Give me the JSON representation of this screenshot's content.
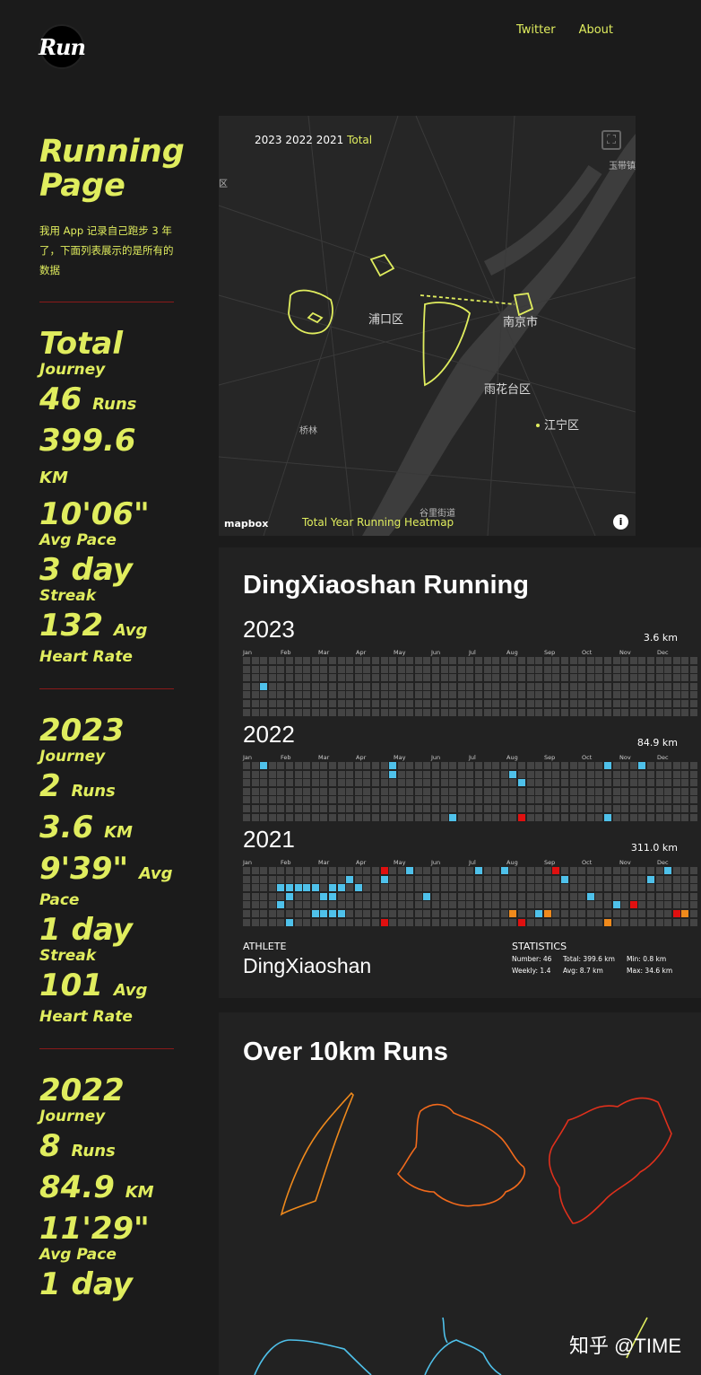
{
  "logo": {
    "text": "Run"
  },
  "nav": {
    "twitter": "Twitter",
    "about": "About"
  },
  "sidebar": {
    "title": "Running Page",
    "description": "我用 App 记录自己跑步 3 年了，下面列表展示的是所有的数据",
    "total": {
      "journey": "Total",
      "journey_sub": "Journey",
      "runs_num": "46",
      "runs_unit": "Runs",
      "km_num": "399.6",
      "km_unit": "KM",
      "pace": "10'06\"",
      "pace_label": "Avg Pace",
      "streak": "3 day",
      "streak_label": "Streak",
      "hr": "132",
      "hr_unit": "Avg",
      "hr_label": "Heart Rate"
    },
    "y2023": {
      "journey": "2023",
      "journey_sub": "Journey",
      "runs_num": "2",
      "runs_unit": "Runs",
      "km_num": "3.6",
      "km_unit": "KM",
      "pace": "9'39\"",
      "pace_unit": "Avg",
      "pace_label": "Pace",
      "streak": "1 day",
      "streak_label": "Streak",
      "hr": "101",
      "hr_unit": "Avg",
      "hr_label": "Heart Rate"
    },
    "y2022": {
      "journey": "2022",
      "journey_sub": "Journey",
      "runs_num": "8",
      "runs_unit": "Runs",
      "km_num": "84.9",
      "km_unit": "KM",
      "pace": "11'29\"",
      "pace_label": "Avg Pace",
      "streak": "1 day"
    }
  },
  "map": {
    "years": "2023 2022 2021",
    "total": "Total",
    "labels": {
      "pukou": "浦口区",
      "nanjing": "南京市",
      "yuhuatai": "雨花台区",
      "jiangning": "江宁区",
      "qiaolin": "桥林",
      "guli": "谷里街道",
      "yudai": "玉带镇",
      "qu": "区"
    },
    "caption": "Total Year Running Heatmap",
    "mapbox": "mapbox"
  },
  "calendar": {
    "title": "DingXiaoshan Running",
    "months": [
      "Jan",
      "Feb",
      "Mar",
      "Apr",
      "May",
      "Jun",
      "Jul",
      "Aug",
      "Sep",
      "Oct",
      "Nov",
      "Dec"
    ],
    "years": [
      {
        "year": "2023",
        "km": "3.6 km"
      },
      {
        "year": "2022",
        "km": "84.9 km"
      },
      {
        "year": "2021",
        "km": "311.0 km"
      }
    ],
    "athlete_label": "ATHLETE",
    "athlete_name": "DingXiaoshan",
    "statistics_label": "STATISTICS",
    "stats": {
      "number": "Number: 46",
      "weekly": "Weekly: 1.4",
      "total": "Total: 399.6 km",
      "avg": "Avg: 8.7 km",
      "min": "Min: 0.8 km",
      "max": "Max: 34.6 km"
    }
  },
  "routes": {
    "title": "Over 10km Runs"
  },
  "watermark": "知乎 @TIME",
  "colors": {
    "accent": "#e0ed5e",
    "background": "#1b1b1b",
    "blue": "#4fc1ea",
    "red": "#e01010",
    "orange": "#f08a1c"
  }
}
